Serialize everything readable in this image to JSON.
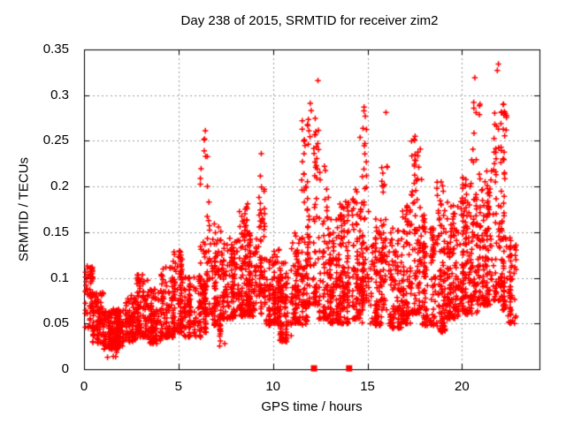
{
  "figure": {
    "background": "#ffffff",
    "axis_color": "#000000",
    "grid_color": "#9e9e9e",
    "text_color": "#000000"
  },
  "chart_data": {
    "type": "scatter",
    "title": "Day 238 of 2015, SRMTID for receiver zim2",
    "xlabel": "GPS time / hours",
    "ylabel": "SRMTID / TECUs",
    "xlim": [
      0,
      24.1
    ],
    "ylim": [
      0,
      0.35
    ],
    "xticks": [
      [
        0,
        "0"
      ],
      [
        5,
        "5"
      ],
      [
        10,
        "10"
      ],
      [
        15,
        "15"
      ],
      [
        20,
        "20"
      ]
    ],
    "yticks": [
      [
        0,
        "0"
      ],
      [
        0.05,
        "0.05"
      ],
      [
        0.1,
        "0.1"
      ],
      [
        0.15,
        "0.15"
      ],
      [
        0.2,
        "0.2"
      ],
      [
        0.25,
        "0.25"
      ],
      [
        0.3,
        "0.3"
      ],
      [
        0.35,
        "0.35"
      ]
    ],
    "grid": true,
    "legend": "none",
    "marker": {
      "shape": "plus",
      "color": "#ff0000",
      "size": 7
    },
    "seed": 7,
    "series": [
      {
        "name": "SRMTID",
        "marker": "plus",
        "color": "#ff0000",
        "segments_format": [
          "x_start_h",
          "x_end_h",
          "count",
          "y_min_TECU",
          "y_max_TECU",
          "bottom_bias_exponent"
        ],
        "segments": [
          [
            0.05,
            0.45,
            60,
            0.045,
            0.112,
            1.0
          ],
          [
            0.45,
            1.05,
            90,
            0.028,
            0.085,
            1.4
          ],
          [
            1.05,
            2.1,
            200,
            0.022,
            0.066,
            1.3
          ],
          [
            1.2,
            1.9,
            10,
            0.013,
            0.026,
            1.0
          ],
          [
            2.1,
            2.75,
            90,
            0.03,
            0.082,
            1.4
          ],
          [
            2.75,
            3.45,
            110,
            0.035,
            0.105,
            1.5
          ],
          [
            3.45,
            4.05,
            90,
            0.028,
            0.088,
            1.4
          ],
          [
            4.05,
            4.7,
            100,
            0.035,
            0.112,
            1.5
          ],
          [
            4.7,
            5.3,
            100,
            0.04,
            0.13,
            1.5
          ],
          [
            5.3,
            6.15,
            110,
            0.035,
            0.105,
            1.4
          ],
          [
            6.15,
            6.65,
            60,
            0.06,
            0.255,
            2.0
          ],
          [
            6.15,
            6.65,
            40,
            0.04,
            0.1,
            1.2
          ],
          [
            6.65,
            7.35,
            90,
            0.048,
            0.16,
            1.6
          ],
          [
            6.9,
            7.7,
            10,
            0.025,
            0.048,
            1.0
          ],
          [
            7.35,
            8.05,
            110,
            0.055,
            0.145,
            1.5
          ],
          [
            8.05,
            8.7,
            110,
            0.058,
            0.182,
            1.6
          ],
          [
            8.7,
            9.25,
            90,
            0.058,
            0.15,
            1.5
          ],
          [
            9.25,
            9.6,
            45,
            0.085,
            0.235,
            1.6
          ],
          [
            9.25,
            9.6,
            25,
            0.06,
            0.11,
            1.2
          ],
          [
            9.6,
            10.35,
            110,
            0.048,
            0.135,
            1.4
          ],
          [
            10.35,
            10.95,
            90,
            0.03,
            0.118,
            1.4
          ],
          [
            10.95,
            11.45,
            80,
            0.05,
            0.15,
            1.5
          ],
          [
            11.45,
            11.85,
            55,
            0.07,
            0.272,
            1.9
          ],
          [
            11.45,
            11.85,
            25,
            0.048,
            0.13,
            1.2
          ],
          [
            11.85,
            12.4,
            75,
            0.07,
            0.3,
            1.8
          ],
          [
            12.4,
            12.95,
            75,
            0.055,
            0.245,
            2.0
          ],
          [
            12.95,
            13.55,
            100,
            0.05,
            0.17,
            1.5
          ],
          [
            13.55,
            14.15,
            100,
            0.05,
            0.185,
            1.6
          ],
          [
            14.15,
            14.6,
            70,
            0.055,
            0.2,
            1.7
          ],
          [
            14.6,
            15.1,
            55,
            0.075,
            0.285,
            1.9
          ],
          [
            14.6,
            15.1,
            30,
            0.05,
            0.15,
            1.2
          ],
          [
            15.1,
            15.75,
            90,
            0.048,
            0.165,
            1.5
          ],
          [
            15.75,
            16.1,
            45,
            0.065,
            0.225,
            1.7
          ],
          [
            16.1,
            16.8,
            100,
            0.045,
            0.155,
            1.5
          ],
          [
            16.8,
            17.3,
            80,
            0.05,
            0.185,
            1.6
          ],
          [
            17.3,
            17.9,
            90,
            0.06,
            0.252,
            1.9
          ],
          [
            17.9,
            18.6,
            110,
            0.048,
            0.17,
            1.5
          ],
          [
            18.6,
            19.3,
            110,
            0.04,
            0.205,
            1.7
          ],
          [
            19.3,
            19.9,
            100,
            0.055,
            0.185,
            1.5
          ],
          [
            19.9,
            20.45,
            100,
            0.06,
            0.21,
            1.6
          ],
          [
            20.45,
            20.95,
            55,
            0.075,
            0.3,
            1.9
          ],
          [
            20.45,
            20.95,
            35,
            0.06,
            0.16,
            1.2
          ],
          [
            20.95,
            21.6,
            110,
            0.07,
            0.22,
            1.6
          ],
          [
            21.6,
            22.1,
            70,
            0.075,
            0.305,
            1.8
          ],
          [
            22.1,
            22.45,
            60,
            0.065,
            0.29,
            1.9
          ],
          [
            22.45,
            22.85,
            55,
            0.05,
            0.15,
            1.3
          ]
        ],
        "extra_points": [
          [
            0.17,
            0.113
          ],
          [
            1.55,
            0.014
          ],
          [
            6.38,
            0.252
          ],
          [
            6.42,
            0.261
          ],
          [
            7.45,
            0.028
          ],
          [
            9.38,
            0.236
          ],
          [
            10.52,
            0.031
          ],
          [
            11.55,
            0.272
          ],
          [
            11.97,
            0.291
          ],
          [
            12.02,
            0.283
          ],
          [
            12.38,
            0.316
          ],
          [
            14.82,
            0.287
          ],
          [
            14.88,
            0.277
          ],
          [
            15.98,
            0.281
          ],
          [
            16.03,
            0.222
          ],
          [
            17.52,
            0.255
          ],
          [
            18.9,
            0.205
          ],
          [
            20.62,
            0.292
          ],
          [
            20.68,
            0.319
          ],
          [
            21.87,
            0.327
          ],
          [
            21.93,
            0.334
          ],
          [
            22.2,
            0.29
          ],
          [
            22.25,
            0.282
          ]
        ]
      },
      {
        "name": "event-markers",
        "marker": "filled-square",
        "color": "#ff0000",
        "points": [
          [
            12.17,
            0
          ],
          [
            14.03,
            0
          ]
        ]
      }
    ]
  }
}
